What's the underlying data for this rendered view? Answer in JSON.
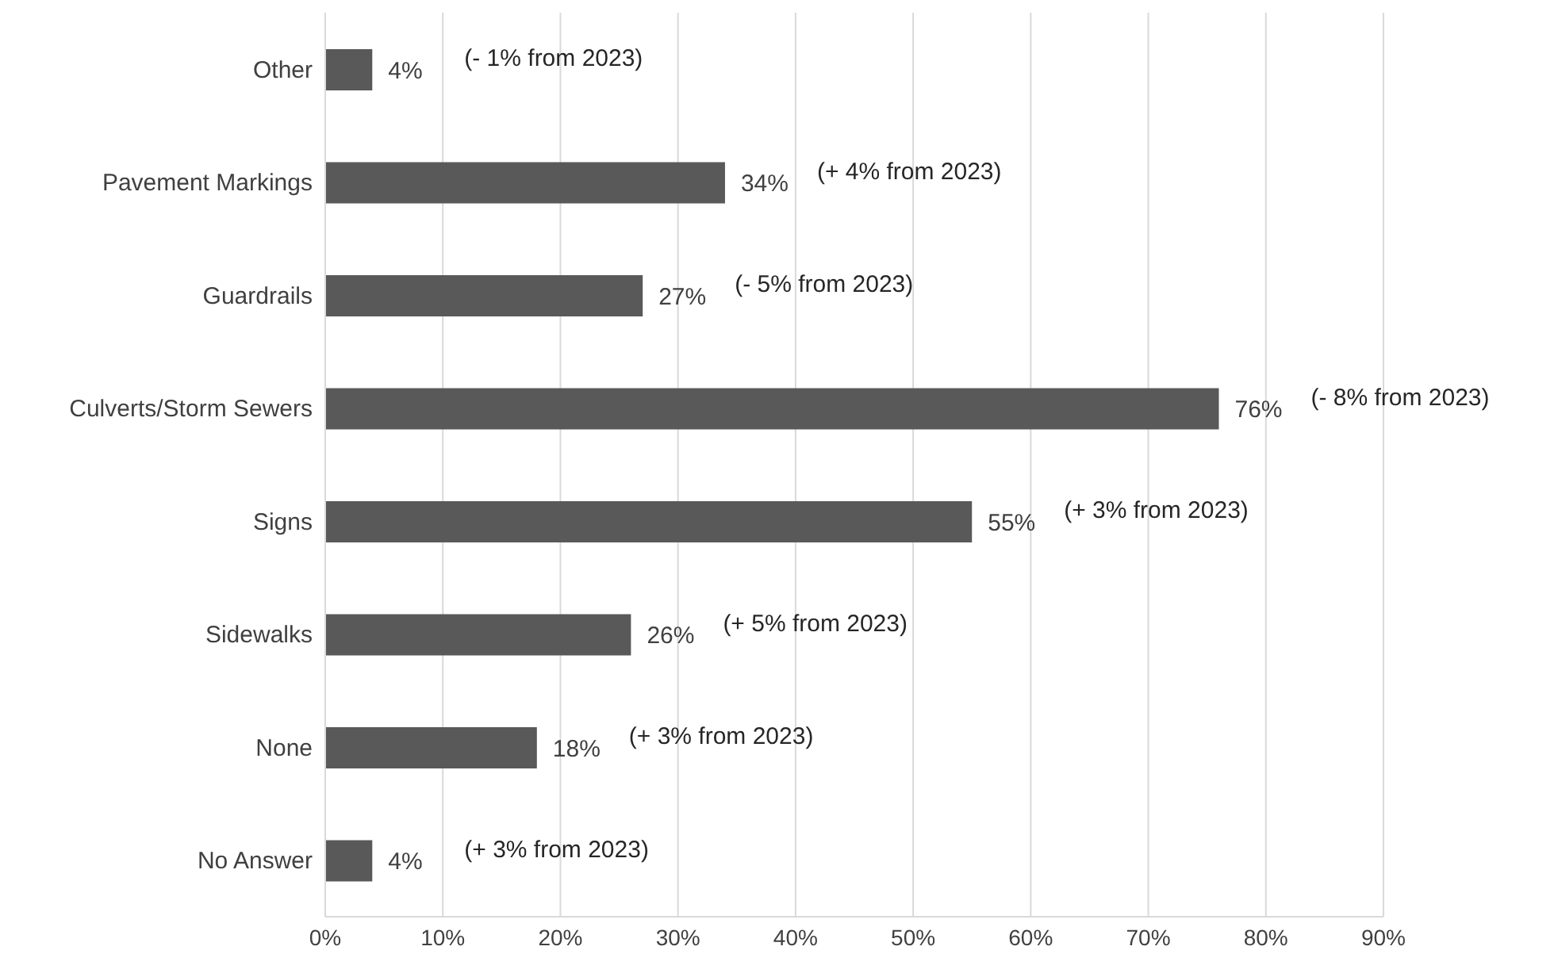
{
  "chart_data": {
    "type": "bar",
    "orientation": "horizontal",
    "categories": [
      "Other",
      "Pavement Markings",
      "Guardrails",
      "Culverts/Storm Sewers",
      "Signs",
      "Sidewalks",
      "None",
      "No Answer"
    ],
    "values": [
      4,
      34,
      27,
      76,
      55,
      26,
      18,
      4
    ],
    "value_labels": [
      "4%",
      "34%",
      "27%",
      "76%",
      "55%",
      "26%",
      "18%",
      "4%"
    ],
    "color": "#595959",
    "xlim": [
      0,
      90
    ],
    "xticks": [
      {
        "value": 0,
        "label": "0%"
      },
      {
        "value": 10,
        "label": "10%"
      },
      {
        "value": 20,
        "label": "20%"
      },
      {
        "value": 30,
        "label": "30%"
      },
      {
        "value": 40,
        "label": "40%"
      },
      {
        "value": 50,
        "label": "50%"
      },
      {
        "value": 60,
        "label": "60%"
      },
      {
        "value": 70,
        "label": "70%"
      },
      {
        "value": 80,
        "label": "80%"
      },
      {
        "value": 90,
        "label": "90%"
      }
    ],
    "grid": "x",
    "annotations": [
      "(- 1% from 2023)",
      "(+ 4% from 2023)",
      "(- 5% from 2023)",
      "(- 8% from 2023)",
      "(+ 3% from 2023)",
      "(+ 5% from 2023)",
      "(+ 3% from 2023)",
      "(+ 3% from 2023)"
    ]
  }
}
